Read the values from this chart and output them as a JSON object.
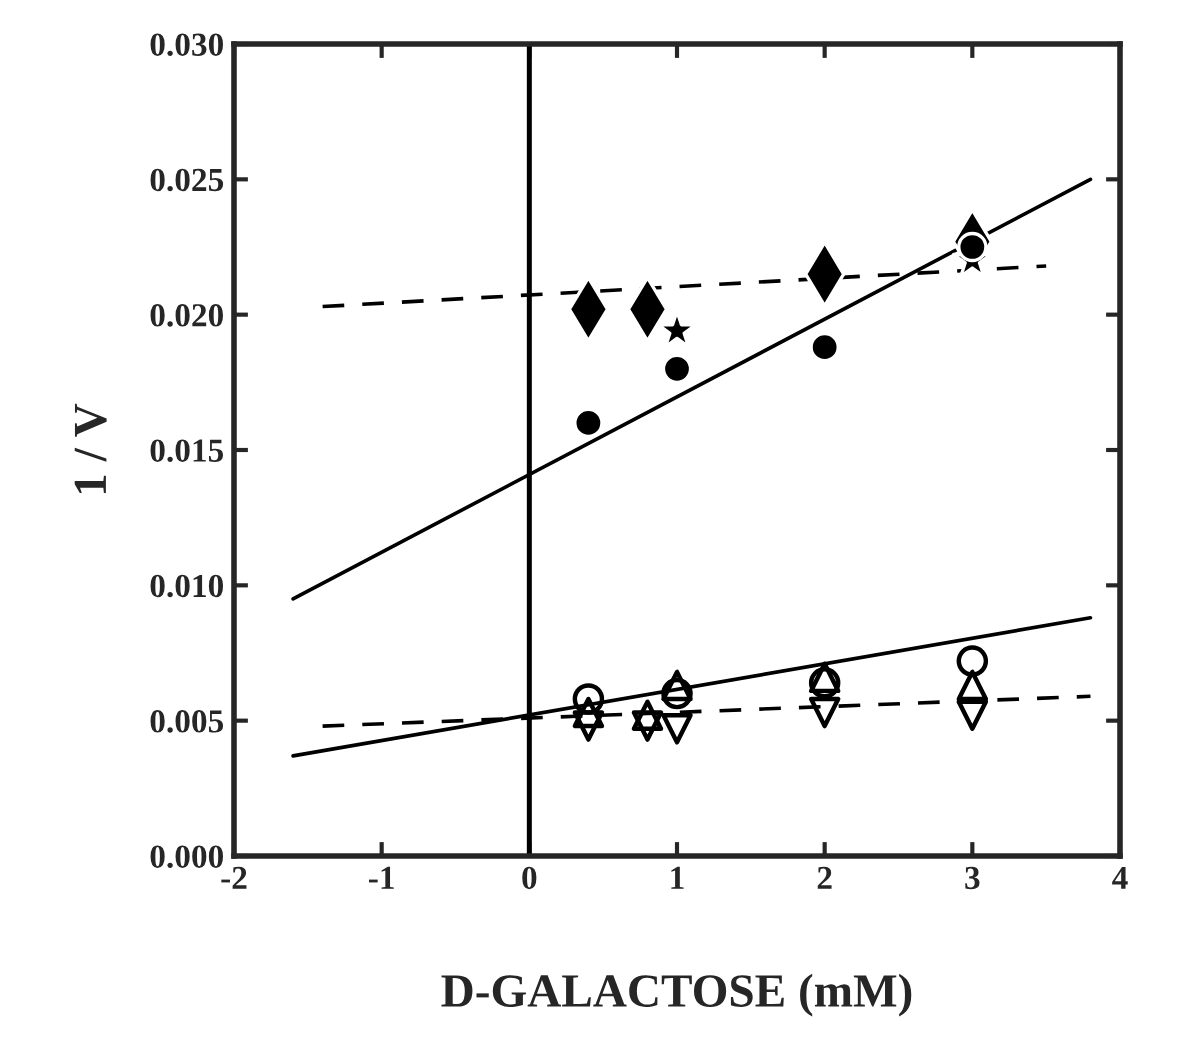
{
  "chart_data": {
    "type": "scatter",
    "xlabel": "D-GALACTOSE (mM)",
    "ylabel": "1 / V",
    "xlim": [
      -2,
      4
    ],
    "ylim": [
      0,
      0.03
    ],
    "xticks": [
      -2,
      -1,
      0,
      1,
      2,
      3,
      4
    ],
    "yticks": [
      {
        "value": 0,
        "label": "0.000"
      },
      {
        "value": 0.005,
        "label": "0.005"
      },
      {
        "value": 0.01,
        "label": "0.010"
      },
      {
        "value": 0.015,
        "label": "0.015"
      },
      {
        "value": 0.02,
        "label": "0.020"
      },
      {
        "value": 0.025,
        "label": "0.025"
      },
      {
        "value": 0.03,
        "label": "0.030"
      }
    ],
    "grid": false,
    "legend": false,
    "ref_lines": [
      {
        "axis": "x",
        "value": 0,
        "color": "#000000",
        "line_style": "solid"
      }
    ],
    "series": [
      {
        "marker": "circle",
        "color": "#000000",
        "x": [
          0.4,
          1,
          2,
          3
        ],
        "values": [
          0.016,
          0.018,
          0.0188,
          0.0225
        ]
      },
      {
        "marker": "diamond",
        "color": "#000000",
        "x": [
          0.4,
          0.8,
          2,
          3
        ],
        "values": [
          0.0202,
          0.0202,
          0.0215,
          0.0227
        ]
      },
      {
        "marker": "star",
        "color": "#000000",
        "x": [
          1,
          3
        ],
        "values": [
          0.0194,
          0.022
        ]
      },
      {
        "marker": "circle-open",
        "color": "#000000",
        "x": [
          0.4,
          1,
          2,
          3
        ],
        "values": [
          0.0058,
          0.006,
          0.0064,
          0.0072
        ]
      },
      {
        "marker": "triangle-open",
        "color": "#000000",
        "x": [
          0.4,
          0.8,
          1,
          2,
          3
        ],
        "values": [
          0.0053,
          0.0052,
          0.0063,
          0.0066,
          0.0063
        ]
      },
      {
        "marker": "triangle-down-open",
        "color": "#000000",
        "x": [
          0.4,
          0.8,
          1,
          2,
          3
        ],
        "values": [
          0.0048,
          0.0048,
          0.0047,
          0.0053,
          0.0052
        ]
      },
      {
        "type": "line",
        "line_style": "solid",
        "color": "#000000",
        "x": [
          -1.6,
          3.8
        ],
        "values": [
          0.0095,
          0.025
        ]
      },
      {
        "type": "line",
        "line_style": "dashed",
        "color": "#000000",
        "x": [
          -1.4,
          3.5
        ],
        "values": [
          0.0203,
          0.0218
        ]
      },
      {
        "type": "line",
        "line_style": "solid",
        "color": "#000000",
        "x": [
          -1.6,
          3.8
        ],
        "values": [
          0.0037,
          0.0088
        ]
      },
      {
        "type": "line",
        "line_style": "dashed",
        "color": "#000000",
        "x": [
          -1.4,
          3.8
        ],
        "values": [
          0.0048,
          0.0059
        ]
      }
    ]
  }
}
